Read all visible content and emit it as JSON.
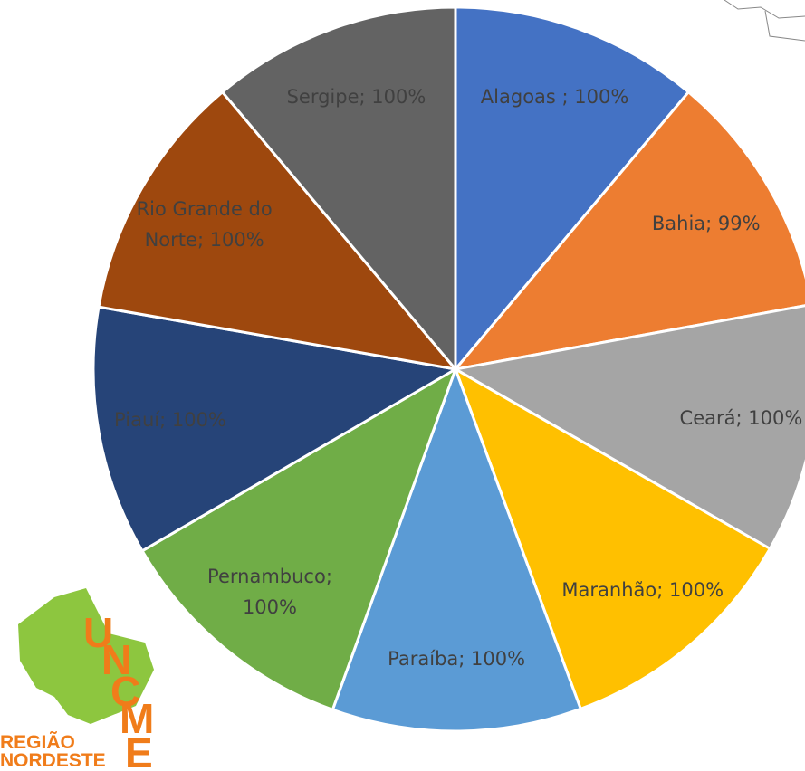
{
  "chart_data": {
    "type": "pie",
    "values": [
      100,
      99,
      100,
      100,
      100,
      100,
      100,
      100,
      100
    ],
    "value_labels": [
      "Alagoas ; 100%",
      "Bahia; 99%",
      "Ceará; 100%",
      "Maranhão; 100%",
      "Paraíba; 100%",
      "Pernambuco;\n100%",
      "Piauí; 100%",
      "Rio Grande do\nNorte; 100%",
      "Sergipe; 100%"
    ],
    "colors": [
      "#4472c4",
      "#ed7d31",
      "#a5a5a5",
      "#ffc000",
      "#5b9bd5",
      "#70ad47",
      "#264478",
      "#9e480e",
      "#636363"
    ]
  },
  "logo": {
    "letters": [
      "U",
      "N",
      "C",
      "M",
      "E"
    ],
    "text": [
      "REGIÃO",
      "NORDESTE"
    ]
  }
}
